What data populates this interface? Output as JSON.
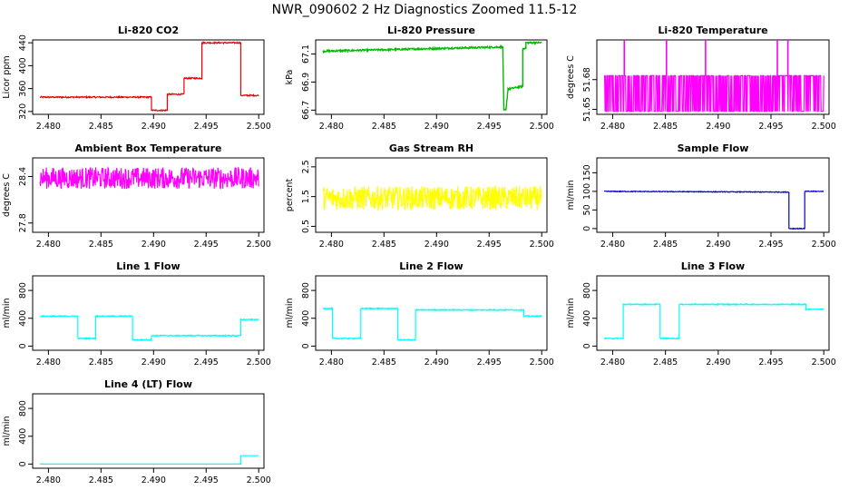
{
  "page": {
    "title": "NWR_090602  2 Hz Diagnostics Zoomed 11.5-12"
  },
  "chart_data": [
    {
      "type": "line",
      "title": "Li-820 CO2",
      "ylabel": "Licor ppm",
      "color": "#ee0000",
      "xlim": [
        2.4785,
        2.5005
      ],
      "ylim": [
        315,
        445
      ],
      "xticks": [
        "2.480",
        "2.485",
        "2.490",
        "2.495",
        "2.500"
      ],
      "xtick_values": [
        2.48,
        2.485,
        2.49,
        2.495,
        2.5
      ],
      "yticks": [
        "320",
        "360",
        "400",
        "440"
      ],
      "ytick_values": [
        320,
        360,
        400,
        440
      ],
      "series": [
        {
          "x": [
            2.4792,
            2.4898,
            2.4898,
            2.4913,
            2.4913,
            2.4929,
            2.4929,
            2.4946,
            2.4946,
            2.4983,
            2.4983,
            2.5
          ],
          "y": [
            345,
            345,
            322,
            322,
            350,
            350,
            378,
            378,
            440,
            440,
            348,
            348
          ],
          "noise": 1.2
        }
      ]
    },
    {
      "type": "line",
      "title": "Li-820 Pressure",
      "ylabel": "kPa",
      "color": "#00bb00",
      "xlim": [
        2.4785,
        2.5005
      ],
      "ylim": [
        66.67,
        67.2
      ],
      "xticks": [
        "2.480",
        "2.485",
        "2.490",
        "2.495",
        "2.500"
      ],
      "xtick_values": [
        2.48,
        2.485,
        2.49,
        2.495,
        2.5
      ],
      "yticks": [
        "66.7",
        "66.9",
        "67.1"
      ],
      "ytick_values": [
        66.7,
        66.9,
        67.1
      ],
      "series": [
        {
          "x": [
            2.4792,
            2.4963,
            2.4964,
            2.4966,
            2.4968,
            2.4982,
            2.4982,
            2.4985,
            2.4985,
            2.5
          ],
          "y": [
            67.12,
            67.15,
            66.7,
            66.7,
            66.85,
            66.87,
            67.14,
            67.14,
            67.18,
            67.18
          ],
          "noise": 0.006
        }
      ]
    },
    {
      "type": "line",
      "title": "Li-820 Temperature",
      "ylabel": "degrees C",
      "color": "#ff00ff",
      "xlim": [
        2.4785,
        2.5005
      ],
      "ylim": [
        51.645,
        51.72
      ],
      "xticks": [
        "2.480",
        "2.485",
        "2.490",
        "2.495",
        "2.500"
      ],
      "xtick_values": [
        2.48,
        2.485,
        2.49,
        2.495,
        2.5
      ],
      "yticks": [
        "51.65",
        "51.68"
      ],
      "ytick_values": [
        51.65,
        51.68
      ],
      "series": [
        {
          "x": [
            2.4792,
            2.5
          ],
          "y": [
            51.684,
            51.684
          ],
          "binary_low": 51.648,
          "spikes": [
            2.4811,
            2.4851,
            2.4888,
            2.4956,
            2.4966
          ],
          "spike_high": 51.72
        }
      ]
    },
    {
      "type": "line",
      "title": "Ambient Box Temperature",
      "ylabel": "degrees C",
      "color": "#ff00ff",
      "xlim": [
        2.4785,
        2.5005
      ],
      "ylim": [
        27.68,
        28.64
      ],
      "xticks": [
        "2.480",
        "2.485",
        "2.490",
        "2.495",
        "2.500"
      ],
      "xtick_values": [
        2.48,
        2.485,
        2.49,
        2.495,
        2.5
      ],
      "yticks": [
        "27.8",
        "28.4"
      ],
      "ytick_values": [
        27.8,
        28.4
      ],
      "series": [
        {
          "x": [
            2.4792,
            2.5
          ],
          "y": [
            28.38,
            28.38
          ],
          "noise": 0.14
        }
      ]
    },
    {
      "type": "line",
      "title": "Gas Stream RH",
      "ylabel": "percent",
      "color": "#ffff00",
      "xlim": [
        2.4785,
        2.5005
      ],
      "ylim": [
        0.3,
        2.8
      ],
      "xticks": [
        "2.480",
        "2.485",
        "2.490",
        "2.495",
        "2.500"
      ],
      "xtick_values": [
        2.48,
        2.485,
        2.49,
        2.495,
        2.5
      ],
      "yticks": [
        "0.5",
        "1.5",
        "2.5"
      ],
      "ytick_values": [
        0.5,
        1.5,
        2.5
      ],
      "series": [
        {
          "x": [
            2.4792,
            2.5
          ],
          "y": [
            1.45,
            1.45
          ],
          "noise": 0.4
        }
      ]
    },
    {
      "type": "line",
      "title": "Sample Flow",
      "ylabel": "ml/min",
      "color": "#0000cc",
      "xlim": [
        2.4785,
        2.5005
      ],
      "ylim": [
        -10,
        190
      ],
      "xticks": [
        "2.480",
        "2.485",
        "2.490",
        "2.495",
        "2.500"
      ],
      "xtick_values": [
        2.48,
        2.485,
        2.49,
        2.495,
        2.5
      ],
      "yticks": [
        "0",
        "50",
        "100",
        "150"
      ],
      "ytick_values": [
        0,
        50,
        100,
        150
      ],
      "series": [
        {
          "x": [
            2.4792,
            2.4967,
            2.4967,
            2.4982,
            2.4982,
            2.5
          ],
          "y": [
            100,
            98,
            0,
            0,
            100,
            100
          ],
          "noise": 1
        }
      ]
    },
    {
      "type": "line",
      "title": "Line 1 Flow",
      "ylabel": "ml/min",
      "color": "#00ffff",
      "xlim": [
        2.4785,
        2.5005
      ],
      "ylim": [
        -60,
        1010
      ],
      "xticks": [
        "2.480",
        "2.485",
        "2.490",
        "2.495",
        "2.500"
      ],
      "xtick_values": [
        2.48,
        2.485,
        2.49,
        2.495,
        2.5
      ],
      "yticks": [
        "0",
        "400",
        "800"
      ],
      "ytick_values": [
        0,
        400,
        800
      ],
      "series": [
        {
          "x": [
            2.4792,
            2.4828,
            2.4828,
            2.4845,
            2.4845,
            2.488,
            2.488,
            2.4898,
            2.4898,
            2.4983,
            2.4983,
            2.5
          ],
          "y": [
            430,
            430,
            110,
            110,
            430,
            430,
            90,
            90,
            150,
            150,
            380,
            380
          ],
          "noise": 8
        }
      ]
    },
    {
      "type": "line",
      "title": "Line 2 Flow",
      "ylabel": "ml/min",
      "color": "#00ffff",
      "xlim": [
        2.4785,
        2.5005
      ],
      "ylim": [
        -60,
        1010
      ],
      "xticks": [
        "2.480",
        "2.485",
        "2.490",
        "2.495",
        "2.500"
      ],
      "xtick_values": [
        2.48,
        2.485,
        2.49,
        2.495,
        2.5
      ],
      "yticks": [
        "0",
        "400",
        "800"
      ],
      "ytick_values": [
        0,
        400,
        800
      ],
      "series": [
        {
          "x": [
            2.4792,
            2.4801,
            2.4801,
            2.4828,
            2.4828,
            2.4863,
            2.4863,
            2.488,
            2.488,
            2.4983,
            2.4983,
            2.5
          ],
          "y": [
            540,
            540,
            110,
            110,
            540,
            540,
            90,
            90,
            520,
            520,
            430,
            430
          ],
          "noise": 8
        }
      ]
    },
    {
      "type": "line",
      "title": "Line 3 Flow",
      "ylabel": "ml/min",
      "color": "#00ffff",
      "xlim": [
        2.4785,
        2.5005
      ],
      "ylim": [
        -60,
        1010
      ],
      "xticks": [
        "2.480",
        "2.485",
        "2.490",
        "2.495",
        "2.500"
      ],
      "xtick_values": [
        2.48,
        2.485,
        2.49,
        2.495,
        2.5
      ],
      "yticks": [
        "0",
        "400",
        "800"
      ],
      "ytick_values": [
        0,
        400,
        800
      ],
      "series": [
        {
          "x": [
            2.4792,
            2.481,
            2.481,
            2.4845,
            2.4845,
            2.4863,
            2.4863,
            2.4983,
            2.4983,
            2.5
          ],
          "y": [
            110,
            110,
            600,
            600,
            110,
            110,
            600,
            600,
            530,
            530
          ],
          "noise": 8
        }
      ]
    },
    {
      "type": "line",
      "title": "Line 4 (LT) Flow",
      "ylabel": "ml/min",
      "color": "#00ffff",
      "xlim": [
        2.4785,
        2.5005
      ],
      "ylim": [
        -60,
        1010
      ],
      "xticks": [
        "2.480",
        "2.485",
        "2.490",
        "2.495",
        "2.500"
      ],
      "xtick_values": [
        2.48,
        2.485,
        2.49,
        2.495,
        2.5
      ],
      "yticks": [
        "0",
        "400",
        "800"
      ],
      "ytick_values": [
        0,
        400,
        800
      ],
      "series": [
        {
          "x": [
            2.4792,
            2.4983,
            2.4983,
            2.5
          ],
          "y": [
            0,
            0,
            120,
            120
          ],
          "noise": 0.5
        }
      ]
    }
  ]
}
